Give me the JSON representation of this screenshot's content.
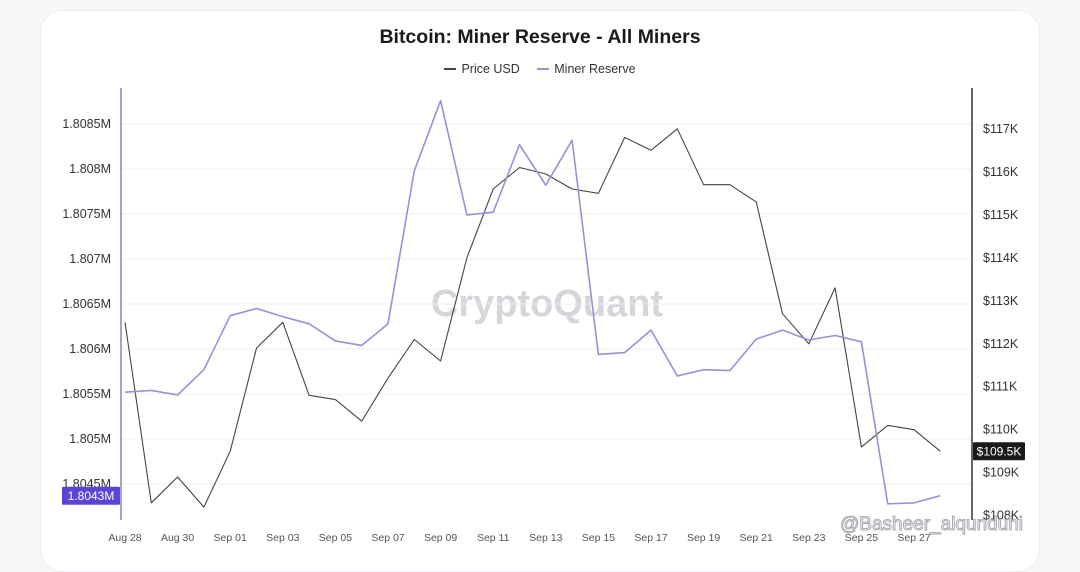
{
  "chart_data": {
    "type": "line",
    "title": "Bitcoin: Miner Reserve - All Miners",
    "watermark": "CryptoQuant",
    "credit": "@Basheer_alqunduhi",
    "legend": [
      {
        "name": "Price USD",
        "color": "#444444"
      },
      {
        "name": "Miner Reserve",
        "color": "#9b8fd6"
      }
    ],
    "x": [
      "2025-08-28",
      "2025-08-29",
      "2025-08-30",
      "2025-08-31",
      "2025-09-01",
      "2025-09-02",
      "2025-09-03",
      "2025-09-04",
      "2025-09-05",
      "2025-09-06",
      "2025-09-07",
      "2025-09-08",
      "2025-09-09",
      "2025-09-10",
      "2025-09-11",
      "2025-09-12",
      "2025-09-13",
      "2025-09-14",
      "2025-09-15",
      "2025-09-16",
      "2025-09-17",
      "2025-09-18",
      "2025-09-19",
      "2025-09-20",
      "2025-09-21",
      "2025-09-22",
      "2025-09-23",
      "2025-09-24",
      "2025-09-25",
      "2025-09-26",
      "2025-09-27",
      "2025-09-28"
    ],
    "x_tick_labels": [
      "Aug 28",
      "Aug 30",
      "Sep 01",
      "Sep 03",
      "Sep 05",
      "Sep 07",
      "Sep 09",
      "Sep 11",
      "Sep 13",
      "Sep 15",
      "Sep 17",
      "Sep 19",
      "Sep 21",
      "Sep 23",
      "Sep 25",
      "Sep 27"
    ],
    "y_left": {
      "ticks": [
        1.8045,
        1.805,
        1.8055,
        1.806,
        1.8065,
        1.807,
        1.8075,
        1.808,
        1.8085
      ],
      "tick_labels": [
        "1.8045M",
        "1.805M",
        "1.8055M",
        "1.806M",
        "1.8065M",
        "1.807M",
        "1.8075M",
        "1.808M",
        "1.8085M"
      ],
      "range": [
        1.8041,
        1.8089
      ],
      "unit": "M"
    },
    "y_right": {
      "ticks": [
        108,
        109,
        110,
        111,
        112,
        113,
        114,
        115,
        116,
        117
      ],
      "tick_labels": [
        "$108K",
        "$109K",
        "$110K",
        "$111K",
        "$112K",
        "$113K",
        "$114K",
        "$115K",
        "$116K",
        "$117K"
      ],
      "range": [
        107.9,
        117.95
      ],
      "unit": "K"
    },
    "series": [
      {
        "name": "Price USD",
        "axis": "right",
        "color": "#444444",
        "values": [
          112.5,
          108.3,
          108.9,
          108.2,
          109.5,
          111.9,
          112.5,
          110.8,
          110.7,
          110.2,
          111.2,
          112.1,
          111.6,
          114.0,
          115.6,
          116.1,
          115.95,
          115.6,
          115.5,
          116.8,
          116.5,
          117.0,
          115.7,
          115.7,
          115.3,
          112.7,
          112.0,
          113.3,
          109.6,
          110.1,
          110.0,
          109.5
        ]
      },
      {
        "name": "Miner Reserve",
        "axis": "left",
        "color": "#9b8fd6",
        "values": [
          1.80552,
          1.80554,
          1.80549,
          1.80577,
          1.80637,
          1.80645,
          1.80636,
          1.80628,
          1.80609,
          1.80604,
          1.80628,
          1.80798,
          1.80876,
          1.80749,
          1.80752,
          1.80827,
          1.80782,
          1.80832,
          1.80594,
          1.80596,
          1.80621,
          1.8057,
          1.80577,
          1.80576,
          1.80611,
          1.80621,
          1.8061,
          1.80615,
          1.80608,
          1.80428,
          1.80429,
          1.80437
        ]
      }
    ],
    "current_labels": {
      "left": "1.8043M",
      "right": "$109.5K"
    },
    "grid": true
  }
}
